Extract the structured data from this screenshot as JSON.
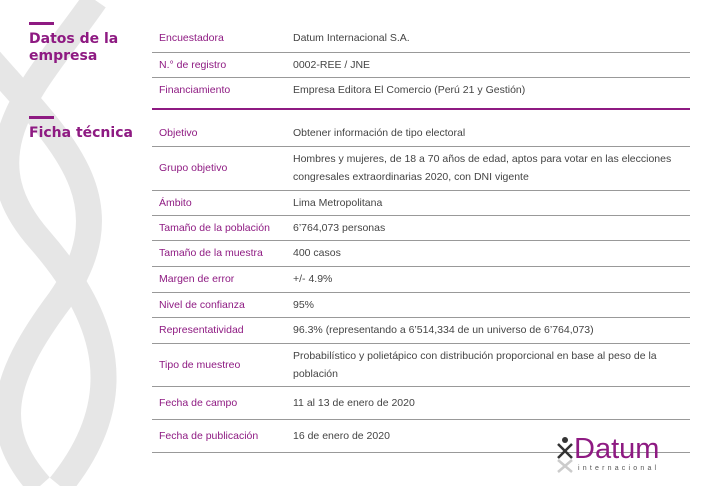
{
  "sections": {
    "empresa": "Datos de la empresa",
    "ficha": "Ficha técnica"
  },
  "empresa_rows": [
    {
      "label": "Encuestadora",
      "value": "Datum Internacional S.A."
    },
    {
      "label": "N.° de registro",
      "value": "0002-REE / JNE"
    },
    {
      "label": "Financiamiento",
      "value": "Empresa Editora El Comercio (Perú 21 y Gestión)"
    }
  ],
  "ficha_rows": [
    {
      "label": "Objetivo",
      "value": "Obtener información de tipo electoral"
    },
    {
      "label": "Grupo objetivo",
      "value": "Hombres y mujeres, de 18 a 70 años de edad, aptos para votar en las elecciones congresales extraordinarias 2020, con DNI vigente"
    },
    {
      "label": "Ámbito",
      "value": "Lima Metropolitana"
    },
    {
      "label": "Tamaño de la población",
      "value": "6’764,073 personas"
    },
    {
      "label": "Tamaño de la muestra",
      "value": "400 casos"
    },
    {
      "label": "Margen de error",
      "value": "+/- 4.9%"
    },
    {
      "label": "Nivel de confianza",
      "value": "95%"
    },
    {
      "label": "Representatividad",
      "value": "96.3% (representando a 6’514,334 de un universo de 6’764,073)"
    },
    {
      "label": "Tipo de muestreo",
      "value": "Probabilístico y polietápico con distribución proporcional en base al peso de la población"
    },
    {
      "label": "Fecha de campo",
      "value": "11 al 13 de enero de 2020"
    },
    {
      "label": "Fecha de publicación",
      "value": "16 de enero de 2020"
    }
  ],
  "logo": {
    "name": "Datum",
    "sub": "internacional"
  }
}
